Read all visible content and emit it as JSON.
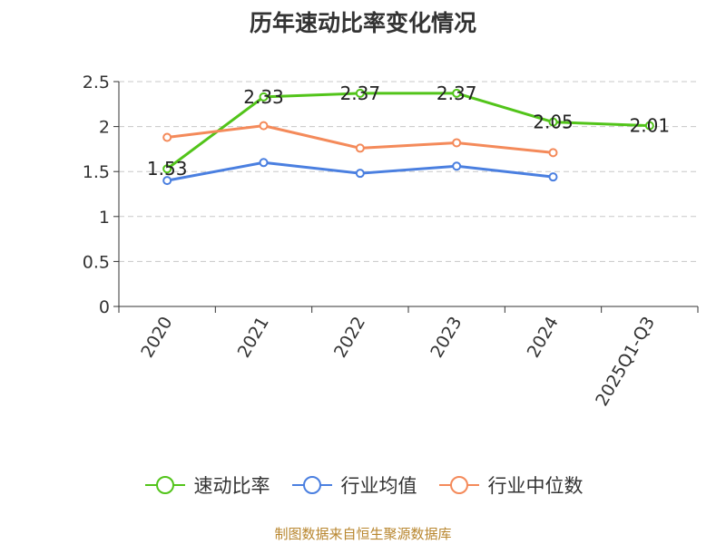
{
  "chart_data": {
    "type": "line",
    "title": "历年速动比率变化情况",
    "categories": [
      "2020",
      "2021",
      "2022",
      "2023",
      "2024",
      "2025Q1-Q3"
    ],
    "ylim": [
      0,
      2.5
    ],
    "yticks": [
      "0",
      "0.5",
      "1",
      "1.5",
      "2",
      "2.5"
    ],
    "grid": true,
    "legend_position": "bottom",
    "series": [
      {
        "name": "速动比率",
        "color": "#52c41a",
        "values": [
          1.53,
          2.33,
          2.37,
          2.37,
          2.05,
          2.01
        ],
        "labels": [
          "1.53",
          "2.33",
          "2.37",
          "2.37",
          "2.05",
          "2.01"
        ]
      },
      {
        "name": "行业均值",
        "color": "#4a7fe0",
        "values": [
          1.4,
          1.6,
          1.48,
          1.56,
          1.44,
          null
        ]
      },
      {
        "name": "行业中位数",
        "color": "#f48a5a",
        "values": [
          1.88,
          2.01,
          1.76,
          1.82,
          1.71,
          null
        ]
      }
    ]
  },
  "footer": {
    "source": "制图数据来自恒生聚源数据库"
  }
}
